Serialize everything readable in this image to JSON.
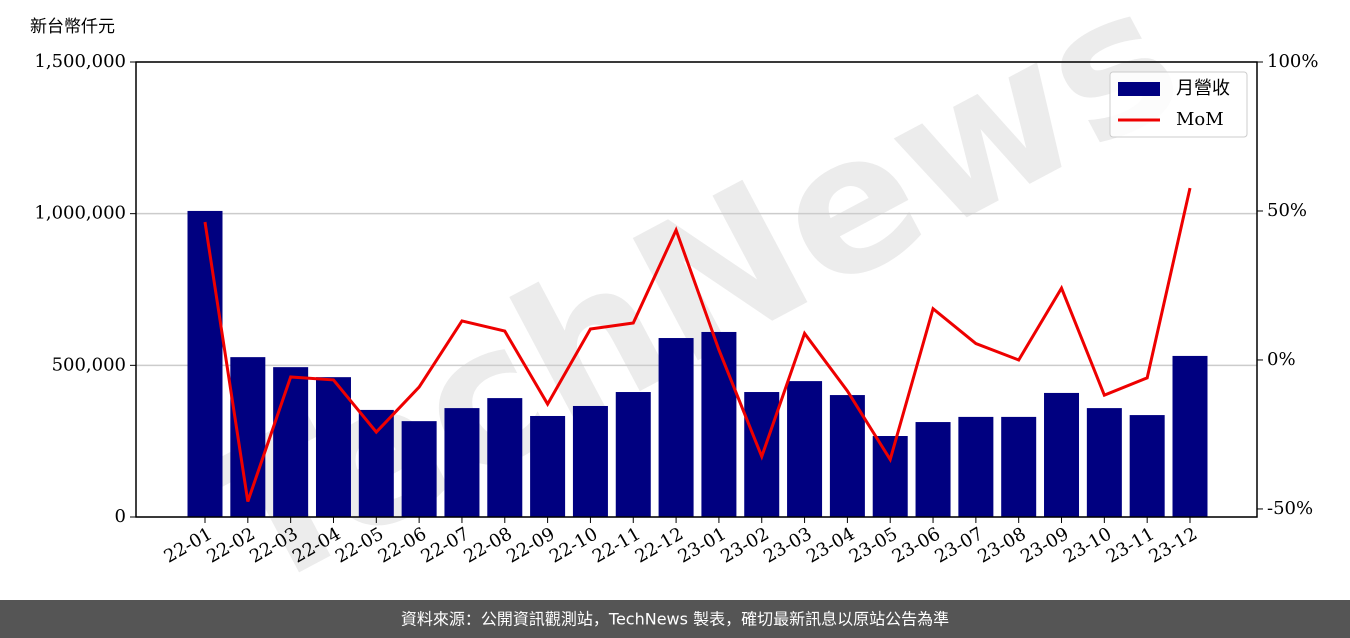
{
  "chart_data": {
    "type": "bar_line",
    "y_label": "新台幣仟元",
    "watermark": "TechNews",
    "source": "資料來源：公開資訊觀測站，TechNews 製表，確切最新訊息以原站公告為準",
    "categories": [
      "22-01",
      "22-02",
      "22-03",
      "22-04",
      "22-05",
      "22-06",
      "22-07",
      "22-08",
      "22-09",
      "22-10",
      "22-11",
      "22-12",
      "23-01",
      "23-02",
      "23-03",
      "23-04",
      "23-05",
      "23-06",
      "23-07",
      "23-08",
      "23-09",
      "23-10",
      "23-11",
      "23-12"
    ],
    "series": [
      {
        "name": "月營收",
        "type": "bar",
        "color": "#000080",
        "values": [
          1009000,
          527000,
          494000,
          461000,
          353000,
          316000,
          359000,
          392000,
          333000,
          366000,
          412000,
          590000,
          610000,
          412000,
          448000,
          402000,
          267000,
          313000,
          330000,
          330000,
          409000,
          359000,
          336000,
          531000
        ]
      },
      {
        "name": "MoM",
        "type": "line",
        "axis": "y2",
        "color": "#ee0000",
        "values": [
          46.3,
          -47.5,
          -5.7,
          -6.7,
          -24.2,
          -9.1,
          13.1,
          9.7,
          -14.8,
          10.4,
          12.4,
          43.6,
          3.4,
          -32.4,
          8.9,
          -10.4,
          -33.4,
          17.2,
          5.5,
          0,
          24.1,
          -11.8,
          -6.0,
          57.7
        ]
      }
    ],
    "ylim": [
      0,
      1500000
    ],
    "yticks": [
      0,
      {
        "value": 500000,
        "label": "500,000"
      },
      {
        "value": 1000000,
        "label": "1,000,000"
      },
      {
        "value": 1500000,
        "label": "1,500,000"
      }
    ],
    "y2lim": [
      -52.7,
      100
    ],
    "y2ticks": [
      {
        "value": -50,
        "label": "-50%"
      },
      {
        "value": 0,
        "label": "0%"
      },
      {
        "value": 50,
        "label": "50%"
      },
      {
        "value": 100,
        "label": "100%"
      }
    ],
    "grid": true,
    "legend": "upper right"
  }
}
